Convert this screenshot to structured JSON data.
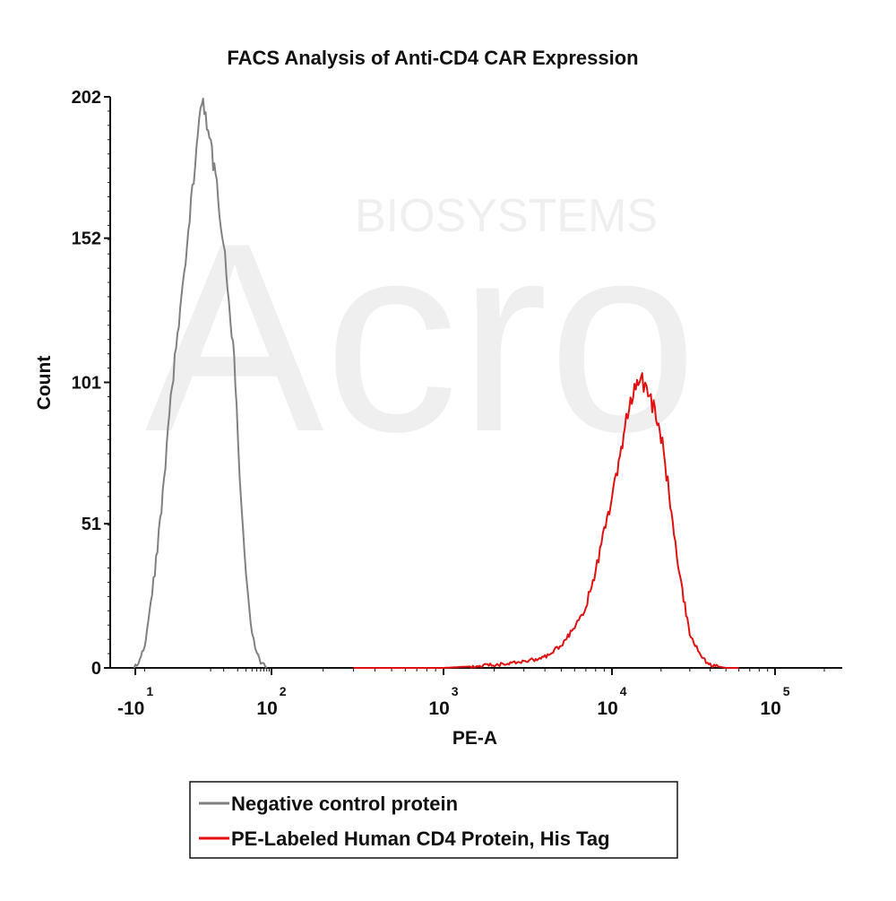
{
  "chart_data": {
    "type": "line",
    "title": "FACS Analysis of Anti-CD4 CAR Expression",
    "xlabel": "PE-A",
    "ylabel": "Count",
    "xscale": "biexponential",
    "xlim": [
      -20,
      200000
    ],
    "ylim": [
      0,
      202
    ],
    "yticks": [
      0,
      51,
      101,
      152,
      202
    ],
    "xticks": [
      {
        "value": -10,
        "base": "-10",
        "exp": "1"
      },
      {
        "value": 100,
        "base": "10",
        "exp": "2"
      },
      {
        "value": 1000,
        "base": "10",
        "exp": "3"
      },
      {
        "value": 10000,
        "base": "10",
        "exp": "4"
      },
      {
        "value": 100000,
        "base": "10",
        "exp": "5"
      }
    ],
    "grid": false,
    "legend_position": "bottom",
    "series": [
      {
        "name": "Negative control protein",
        "color": "#808080",
        "x": [
          -11,
          -8,
          -5,
          -3,
          -1,
          0,
          1,
          3,
          5,
          7,
          10,
          13,
          16,
          19,
          22,
          26,
          30,
          35,
          40,
          50,
          60,
          70,
          80
        ],
        "y": [
          0,
          2,
          8,
          22,
          55,
          100,
          150,
          202,
          185,
          170,
          150,
          130,
          115,
          95,
          70,
          50,
          32,
          20,
          12,
          5,
          2,
          1,
          0
        ]
      },
      {
        "name": "PE-Labeled Human CD4 Protein, His Tag",
        "color": "#e01010",
        "x": [
          300,
          1000,
          2000,
          3000,
          4000,
          5000,
          6000,
          7000,
          8000,
          9000,
          10000,
          11000,
          12000,
          13000,
          14000,
          15000,
          16000,
          17000,
          18000,
          20000,
          22000,
          24000,
          26000,
          28000,
          30000,
          35000,
          40000,
          50000,
          60000
        ],
        "y": [
          0,
          0,
          1,
          2,
          4,
          8,
          14,
          22,
          34,
          50,
          60,
          72,
          85,
          95,
          100,
          103,
          98,
          96,
          92,
          82,
          65,
          48,
          34,
          22,
          12,
          4,
          1,
          0,
          0
        ]
      }
    ]
  },
  "watermark": {
    "line1": "BIOSYSTEMS",
    "line2": "Acro"
  }
}
